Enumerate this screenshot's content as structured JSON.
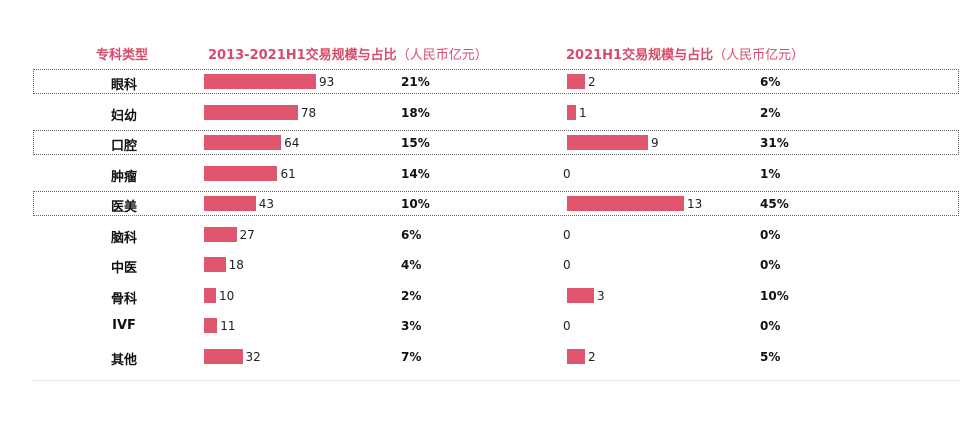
{
  "header": {
    "col_category": "专科类型",
    "col_total": "2013-2021H1交易规模与占比",
    "col_total_unit": "（人民币亿元）",
    "col_h1": "2021H1交易规模与占比",
    "col_h1_unit": "（人民币亿元）"
  },
  "colors": {
    "bar": "#e0566f",
    "header": "#d94a6a"
  },
  "chart_data": {
    "type": "bar",
    "orientation": "horizontal",
    "categories": [
      "眼科",
      "妇幼",
      "口腔",
      "肿瘤",
      "医美",
      "脑科",
      "中医",
      "骨科",
      "IVF",
      "其他"
    ],
    "highlighted": [
      "眼科",
      "口腔",
      "医美"
    ],
    "series": [
      {
        "name": "2013-2021H1交易规模与占比（人民币亿元）",
        "values": [
          93,
          78,
          64,
          61,
          43,
          27,
          18,
          10,
          11,
          32
        ],
        "shares": [
          "21%",
          "18%",
          "15%",
          "14%",
          "10%",
          "6%",
          "4%",
          "2%",
          "3%",
          "7%"
        ]
      },
      {
        "name": "2021H1交易规模与占比（人民币亿元）",
        "values": [
          2,
          1,
          9,
          0,
          13,
          0,
          0,
          3,
          0,
          2
        ],
        "shares": [
          "6%",
          "2%",
          "31%",
          "1%",
          "45%",
          "0%",
          "0%",
          "10%",
          "0%",
          "5%"
        ]
      }
    ]
  }
}
